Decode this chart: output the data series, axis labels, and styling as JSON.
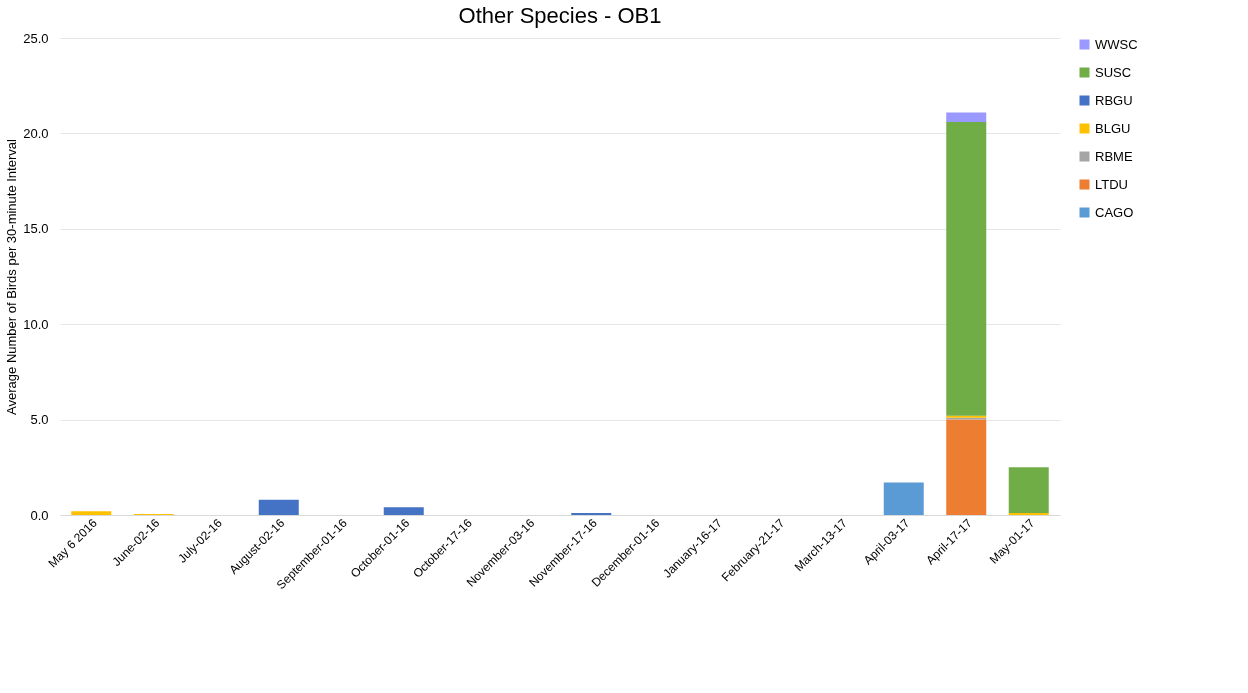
{
  "chart_data": {
    "type": "bar",
    "title": "Other Species - OB1",
    "ylabel": "Average Number of Birds per 30-minute Interval",
    "categories": [
      "May 6 2016",
      "June-02-16",
      "July-02-16",
      "August-02-16",
      "September-01-16",
      "October-01-16",
      "October-17-16",
      "November-03-16",
      "November-17-16",
      "December-01-16",
      "January-16-17",
      "February-21-17",
      "March-13-17",
      "April-03-17",
      "April-17-17",
      "May-01-17"
    ],
    "stacked": true,
    "series": [
      {
        "name": "CAGO",
        "color": "#5b9bd5",
        "values": [
          0,
          0,
          0,
          0,
          0,
          0,
          0,
          0,
          0,
          0,
          0,
          0,
          0,
          1.7,
          0,
          0
        ]
      },
      {
        "name": "LTDU",
        "color": "#ed7d31",
        "values": [
          0,
          0,
          0,
          0,
          0,
          0,
          0,
          0,
          0,
          0,
          0,
          0,
          0,
          0,
          5.0,
          0
        ]
      },
      {
        "name": "RBME",
        "color": "#a5a5a5",
        "values": [
          0,
          0,
          0,
          0,
          0,
          0,
          0,
          0,
          0,
          0,
          0,
          0,
          0,
          0,
          0.1,
          0
        ]
      },
      {
        "name": "BLGU",
        "color": "#ffc000",
        "values": [
          0.2,
          0.05,
          0,
          0,
          0,
          0,
          0,
          0,
          0,
          0,
          0,
          0,
          0,
          0,
          0.1,
          0.1
        ]
      },
      {
        "name": "RBGU",
        "color": "#4472c4",
        "values": [
          0,
          0,
          0,
          0.8,
          0,
          0.4,
          0,
          0,
          0.1,
          0,
          0,
          0,
          0,
          0,
          0,
          0
        ]
      },
      {
        "name": "SUSC",
        "color": "#70ad47",
        "values": [
          0,
          0,
          0,
          0,
          0,
          0,
          0,
          0,
          0,
          0,
          0,
          0,
          0,
          0,
          15.4,
          2.4
        ]
      },
      {
        "name": "WWSC",
        "color": "#9999ff",
        "values": [
          0,
          0,
          0,
          0,
          0,
          0,
          0,
          0,
          0,
          0,
          0,
          0,
          0,
          0,
          0.5,
          0
        ]
      }
    ],
    "ylim": [
      0,
      25
    ],
    "yticks": [
      {
        "value": 0,
        "label": "0.0"
      },
      {
        "value": 5,
        "label": "5.0"
      },
      {
        "value": 10,
        "label": "10.0"
      },
      {
        "value": 15,
        "label": "15.0"
      },
      {
        "value": 20,
        "label": "20.0"
      },
      {
        "value": 25,
        "label": "25.0"
      }
    ],
    "grid": "y",
    "legend": "right"
  }
}
